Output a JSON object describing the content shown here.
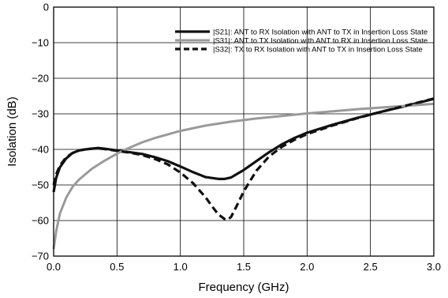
{
  "chart_data": {
    "type": "line",
    "title": "",
    "xlabel": "Frequency (GHz)",
    "ylabel": "Isolation (dB)",
    "xlim": [
      0.0,
      3.0
    ],
    "ylim": [
      -70,
      0
    ],
    "xticks": [
      0.0,
      0.5,
      1.0,
      1.5,
      2.0,
      2.5,
      3.0
    ],
    "xtick_labels": [
      "0.0",
      "0.5",
      "1.0",
      "1.5",
      "2.0",
      "2.5",
      "3.0"
    ],
    "yticks": [
      0,
      -10,
      -20,
      -30,
      -40,
      -50,
      -60,
      -70
    ],
    "ytick_labels": [
      "0",
      "−10",
      "−20",
      "−30",
      "−40",
      "−50",
      "−60",
      "−70"
    ],
    "grid": true,
    "legend_position": "top-right",
    "series": [
      {
        "name": "|S21|: ANT to RX Isolation with ANT to TX in Insertion Loss State",
        "color": "#111111",
        "style": "solid",
        "x": [
          0.0,
          0.02,
          0.05,
          0.1,
          0.15,
          0.2,
          0.25,
          0.3,
          0.35,
          0.4,
          0.5,
          0.6,
          0.7,
          0.8,
          0.9,
          1.0,
          1.1,
          1.2,
          1.3,
          1.35,
          1.4,
          1.5,
          1.6,
          1.7,
          1.8,
          1.9,
          2.0,
          2.2,
          2.4,
          2.6,
          2.8,
          3.0
        ],
        "y": [
          -52,
          -48,
          -45,
          -42.5,
          -41,
          -40.3,
          -40,
          -39.8,
          -39.6,
          -39.8,
          -40.3,
          -40.8,
          -41.3,
          -42.2,
          -43.3,
          -44.8,
          -46.4,
          -47.8,
          -48.3,
          -48.3,
          -47.9,
          -45.8,
          -43.3,
          -40.8,
          -38.6,
          -36.8,
          -35.3,
          -33.1,
          -31.1,
          -29.3,
          -27.6,
          -25.8
        ]
      },
      {
        "name": "|S31|: ANT to TX Isolation with ANT to RX in Insertion Loss State",
        "color": "#9a9a9a",
        "style": "solid",
        "x": [
          0.0,
          0.02,
          0.05,
          0.1,
          0.15,
          0.2,
          0.3,
          0.4,
          0.5,
          0.6,
          0.7,
          0.8,
          1.0,
          1.2,
          1.4,
          1.6,
          1.8,
          2.0,
          2.2,
          2.4,
          2.6,
          2.8,
          3.0
        ],
        "y": [
          -68,
          -63,
          -58,
          -53.5,
          -50.5,
          -48.5,
          -45.5,
          -43.2,
          -41.2,
          -39.5,
          -38,
          -36.8,
          -34.8,
          -33.3,
          -32.2,
          -31.3,
          -30.6,
          -29.9,
          -29.3,
          -28.7,
          -28.2,
          -27.7,
          -27.2
        ]
      },
      {
        "name": "|S32|: TX to RX Isolation with ANT to TX in Insertion Loss State",
        "color": "#111111",
        "style": "dashed",
        "x": [
          0.0,
          0.02,
          0.05,
          0.1,
          0.15,
          0.2,
          0.25,
          0.3,
          0.35,
          0.4,
          0.5,
          0.6,
          0.7,
          0.8,
          0.9,
          1.0,
          1.1,
          1.2,
          1.25,
          1.3,
          1.35,
          1.37,
          1.4,
          1.45,
          1.5,
          1.6,
          1.7,
          1.8,
          1.9,
          2.0,
          2.2,
          2.4,
          2.6,
          2.8,
          3.0
        ],
        "y": [
          -50,
          -47,
          -44.5,
          -42.2,
          -41,
          -40.3,
          -40,
          -39.8,
          -39.7,
          -39.9,
          -40.4,
          -40.9,
          -41.6,
          -42.7,
          -44.2,
          -46.5,
          -49.5,
          -53.5,
          -56,
          -58.3,
          -59.6,
          -59.8,
          -59,
          -55.5,
          -51.8,
          -46,
          -42,
          -39.3,
          -37.3,
          -35.7,
          -33.3,
          -31.2,
          -29.3,
          -27.5,
          -25.7
        ]
      }
    ]
  }
}
